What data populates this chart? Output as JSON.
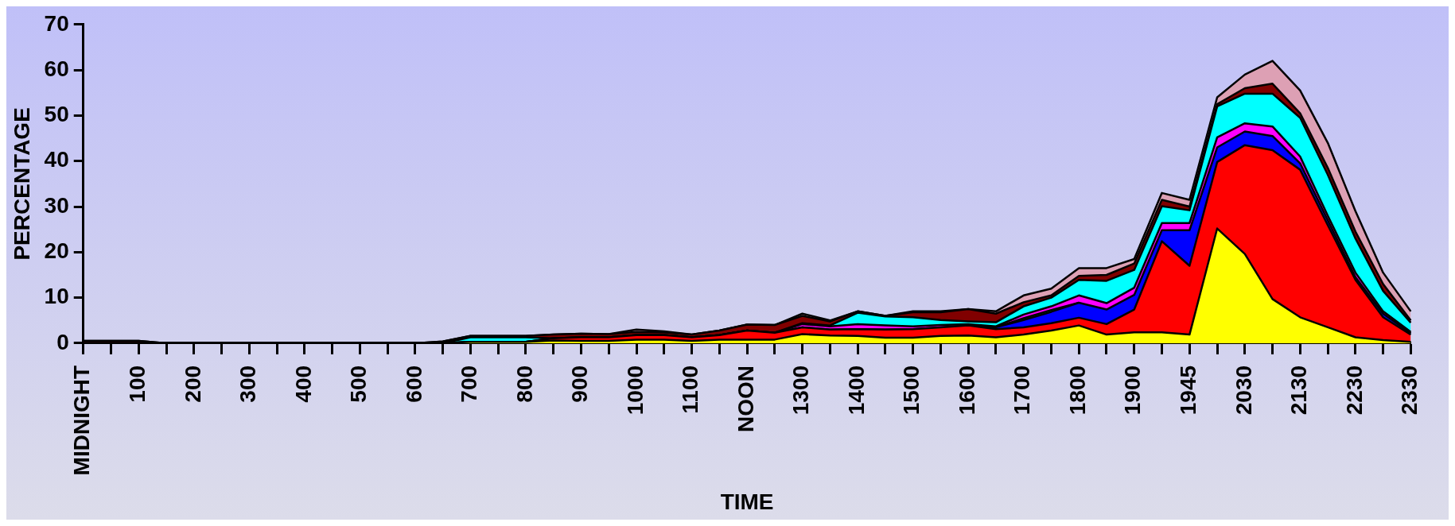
{
  "chart_data": {
    "type": "area",
    "stacked": true,
    "xlabel": "TIME",
    "ylabel": "PERCENTAGE",
    "marker": "none",
    "categories": [
      "MIDNIGHT",
      null,
      "100",
      null,
      "200",
      null,
      "300",
      null,
      "400",
      null,
      "500",
      null,
      "600",
      null,
      "700",
      null,
      "800",
      null,
      "900",
      null,
      "1000",
      null,
      "1100",
      null,
      "NOON",
      null,
      "1300",
      null,
      "1400",
      null,
      "1500",
      null,
      "1600",
      null,
      "1700",
      null,
      "1800",
      null,
      "1900",
      null,
      "1945",
      null,
      "2030",
      null,
      "2130",
      null,
      "2230",
      null,
      "2330"
    ],
    "ylim": [
      0,
      70
    ],
    "yticks": [
      0,
      10,
      20,
      30,
      40,
      50,
      60,
      70
    ],
    "series": [
      {
        "color": "#ffff00",
        "values": [
          0,
          0,
          0,
          0,
          0,
          0,
          0,
          0,
          0,
          0,
          0,
          0,
          0,
          0,
          0.3,
          0.3,
          0.3,
          0.6,
          0.5,
          0.5,
          0.8,
          0.8,
          0.5,
          0.8,
          0.8,
          0.8,
          2.0,
          1.7,
          1.6,
          1.2,
          1.2,
          1.6,
          1.7,
          1.3,
          1.9,
          2.8,
          3.9,
          1.9,
          2.4,
          2.4,
          1.9,
          25.2,
          19.6,
          9.7,
          5.7,
          3.5,
          1.3,
          0.7,
          0.3
        ]
      },
      {
        "color": "#ff0000",
        "values": [
          0,
          0,
          0,
          0,
          0,
          0,
          0,
          0,
          0,
          0,
          0,
          0,
          0,
          0,
          0,
          0,
          0,
          0.5,
          0.8,
          0.8,
          1,
          1,
          0.8,
          1,
          2,
          1.5,
          1.5,
          1.3,
          1.5,
          1.8,
          1.9,
          1.9,
          2.2,
          1.8,
          1.6,
          1.6,
          1.7,
          2.3,
          5.0,
          20.0,
          15.1,
          14.6,
          23.9,
          32.7,
          32.4,
          22.4,
          12.6,
          5.0,
          1.6
        ]
      },
      {
        "color": "#0000ff",
        "values": [
          0,
          0,
          0,
          0,
          0,
          0,
          0,
          0,
          0,
          0,
          0,
          0,
          0,
          0,
          0,
          0,
          0,
          0,
          0,
          0,
          0,
          0,
          0,
          0,
          0,
          0,
          0,
          0,
          0,
          0,
          0,
          0,
          0,
          0.4,
          1.6,
          2.5,
          3.3,
          3.2,
          3.2,
          2.4,
          7.8,
          3.2,
          3,
          3.1,
          1.4,
          1.1,
          0.6,
          0.8,
          0.3
        ]
      },
      {
        "color": "#00ff00",
        "values": [
          null,
          null,
          null,
          null,
          null,
          null,
          null,
          null,
          null,
          null,
          null,
          null,
          null,
          null,
          null,
          null,
          null,
          null,
          null,
          null,
          null,
          null,
          null,
          null,
          null,
          null,
          null,
          null,
          null,
          null,
          null,
          null,
          null,
          0,
          0.4,
          0.4,
          0,
          null,
          null,
          null,
          null,
          null,
          null,
          null,
          null,
          null,
          null,
          null,
          null
        ]
      },
      {
        "color": "#ff00ff",
        "values": [
          0,
          0,
          0,
          0,
          0,
          0,
          0,
          0,
          0,
          0,
          0,
          0,
          0,
          0,
          0,
          0,
          0,
          0,
          0,
          0,
          0,
          0,
          0,
          0,
          0,
          0,
          0.7,
          0.7,
          1.1,
          0.9,
          0.6,
          0.5,
          0.3,
          0.2,
          0.8,
          0.8,
          1.6,
          1.4,
          1.6,
          1.6,
          1.6,
          2.2,
          1.8,
          2.1,
          1.5,
          1,
          1,
          0.5,
          0.3
        ]
      },
      {
        "color": "#00ffff",
        "values": [
          0,
          0,
          0,
          0,
          0,
          0,
          0,
          0,
          0,
          0,
          0,
          0,
          0,
          0,
          1,
          1,
          1,
          0,
          0,
          0,
          0,
          0,
          0,
          0,
          0,
          0,
          0.2,
          0.2,
          2.5,
          2.0,
          2.0,
          1.1,
          0.6,
          0.9,
          1.8,
          1.9,
          3.4,
          4.9,
          3.9,
          3.7,
          2.8,
          6.8,
          6.5,
          7.2,
          8.5,
          9,
          7.5,
          4.5,
          2.0
        ]
      },
      {
        "color": "#800000",
        "values": [
          0.5,
          0.5,
          0.5,
          0,
          0,
          0,
          0,
          0,
          0,
          0,
          0,
          0,
          0,
          0.4,
          0.3,
          0.3,
          0.3,
          0.8,
          0.8,
          0.7,
          0.7,
          0.6,
          0.6,
          1,
          1.3,
          1.7,
          1.6,
          0.9,
          0.3,
          0.1,
          1.1,
          1.7,
          2.7,
          1.9,
          0.9,
          0.5,
          0.9,
          1.3,
          1.4,
          1.4,
          0.8,
          0.5,
          1.2,
          2.2,
          1.0,
          1.5,
          1.5,
          1.5,
          0.5
        ]
      },
      {
        "color": "#dda0b4",
        "values": [
          0,
          0,
          0,
          0,
          0,
          0,
          0,
          0,
          0,
          0,
          0,
          0,
          0,
          0,
          0,
          0,
          0,
          0,
          0,
          0,
          0.5,
          0.2,
          0,
          0,
          0,
          0,
          0.5,
          0.2,
          0,
          0,
          0.2,
          0.2,
          0,
          0.5,
          1.5,
          1.5,
          1.7,
          1.5,
          1.0,
          1.5,
          1.5,
          1.5,
          3,
          5,
          5,
          5.5,
          4.5,
          2.5,
          2
        ]
      }
    ]
  }
}
